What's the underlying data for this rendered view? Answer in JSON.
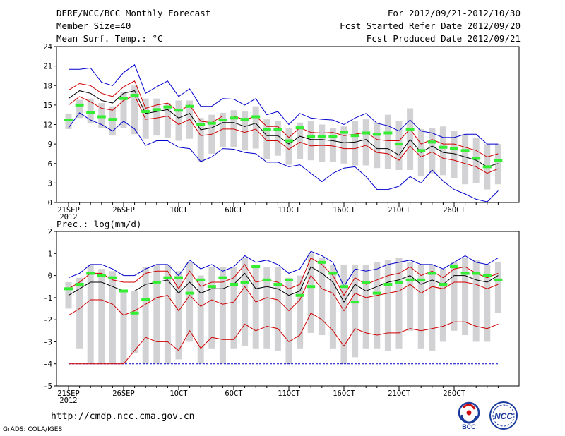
{
  "header": {
    "title": "DERF/NCC/BCC Monthly Forecast",
    "member_size": "Member Size=40",
    "variable_temp": "Mean Surf. Temp.: °C",
    "period": "For 2012/09/21-2012/10/30",
    "started": "Fcst Started Refer Date 2012/09/20",
    "produced": "Fcst Produced Date 2012/09/21"
  },
  "footer": {
    "url": "http://cmdp.ncc.cma.gov.cn",
    "grads": "GrADS: COLA/IGES",
    "logo1_text": "BCC",
    "logo2_text": "NCC"
  },
  "colors": {
    "box": "#d2d2d5",
    "blue": "#0000cc",
    "red": "#d00000",
    "black": "#000000",
    "green": "#33ee33",
    "dashed_blue": "#0000cc"
  },
  "chart_data": [
    {
      "type": "line",
      "name": "temperature",
      "title": "Mean Surf. Temp.: °C",
      "x": [
        1,
        2,
        3,
        4,
        5,
        6,
        7,
        8,
        9,
        10,
        11,
        12,
        13,
        14,
        15,
        16,
        17,
        18,
        19,
        20,
        21,
        22,
        23,
        24,
        25,
        26,
        27,
        28,
        29,
        30,
        31,
        32,
        33,
        34,
        35,
        36,
        37,
        38,
        39,
        40
      ],
      "xtick_positions": [
        1,
        6,
        11,
        16,
        21,
        26,
        31,
        36
      ],
      "xtick_labels": [
        "21SEP",
        "26SEP",
        "1OCT",
        "6OCT",
        "11OCT",
        "16OCT",
        "21OCT",
        "26OCT"
      ],
      "xtick_sublabel": "2012",
      "ylim": [
        0,
        24
      ],
      "yticks": [
        0,
        3,
        6,
        9,
        12,
        15,
        18,
        21,
        24
      ],
      "series": [
        {
          "name": "max",
          "color": "blue",
          "values": [
            20.5,
            20.5,
            20.7,
            18.5,
            18.0,
            20.0,
            21.2,
            16.8,
            17.8,
            18.7,
            16.3,
            17.5,
            14.8,
            14.8,
            16.0,
            15.9,
            15.0,
            16.0,
            13.5,
            14.0,
            12.0,
            13.7,
            13.0,
            12.8,
            12.7,
            12.0,
            13.0,
            13.7,
            12.2,
            11.8,
            11.0,
            12.7,
            11.0,
            10.7,
            10.0,
            10.0,
            10.5,
            10.5,
            9.0,
            9.0
          ]
        },
        {
          "name": "plus_sd",
          "color": "red",
          "values": [
            17.3,
            18.3,
            18.0,
            16.8,
            16.3,
            17.8,
            18.7,
            14.5,
            15.0,
            15.3,
            14.0,
            15.0,
            12.5,
            12.3,
            13.3,
            13.3,
            12.7,
            13.3,
            11.7,
            11.7,
            10.0,
            11.5,
            10.8,
            10.7,
            10.8,
            10.3,
            10.5,
            10.8,
            9.7,
            9.5,
            9.5,
            11.3,
            9.0,
            9.7,
            9.0,
            9.0,
            8.5,
            8.0,
            7.0,
            7.5
          ]
        },
        {
          "name": "mean",
          "color": "black",
          "values": [
            16.0,
            17.2,
            16.8,
            15.7,
            15.3,
            16.8,
            17.2,
            13.7,
            14.0,
            14.3,
            13.0,
            13.7,
            11.2,
            11.5,
            12.3,
            12.3,
            11.7,
            12.2,
            10.3,
            10.3,
            9.0,
            10.2,
            9.7,
            9.7,
            9.5,
            9.2,
            9.3,
            9.7,
            8.3,
            8.3,
            7.3,
            9.7,
            7.7,
            8.7,
            7.7,
            7.5,
            7.0,
            6.5,
            5.5,
            6.0
          ]
        },
        {
          "name": "minus_sd",
          "color": "red",
          "values": [
            15.0,
            16.3,
            15.5,
            14.5,
            14.2,
            15.7,
            16.5,
            12.8,
            13.0,
            13.3,
            12.0,
            12.8,
            10.3,
            10.5,
            11.3,
            11.3,
            10.8,
            11.3,
            9.5,
            9.5,
            8.2,
            9.3,
            8.7,
            8.8,
            8.7,
            8.3,
            8.3,
            8.8,
            7.7,
            7.5,
            6.5,
            8.7,
            7.0,
            7.8,
            6.8,
            6.5,
            6.0,
            5.5,
            4.5,
            5.2
          ]
        },
        {
          "name": "min",
          "color": "blue",
          "values": [
            11.5,
            13.8,
            12.7,
            12.0,
            11.0,
            12.5,
            11.3,
            8.8,
            9.5,
            9.5,
            8.5,
            8.3,
            6.3,
            7.0,
            8.3,
            8.2,
            7.7,
            7.5,
            6.2,
            6.2,
            5.5,
            5.8,
            4.5,
            3.2,
            4.5,
            5.3,
            5.5,
            4.0,
            2.0,
            2.0,
            2.5,
            4.0,
            3.0,
            5.0,
            3.3,
            2.0,
            1.3,
            0.5,
            0.1,
            1.8
          ]
        }
      ],
      "boxes": {
        "low": [
          11.3,
          13.0,
          12.2,
          11.5,
          10.3,
          11.5,
          10.5,
          9.8,
          10.3,
          10.0,
          9.5,
          9.8,
          6.2,
          7.5,
          8.5,
          8.5,
          8.0,
          8.3,
          6.7,
          7.2,
          5.8,
          6.7,
          6.5,
          6.3,
          6.2,
          6.0,
          5.7,
          5.7,
          5.3,
          5.2,
          5.0,
          5.0,
          4.0,
          4.5,
          4.2,
          3.8,
          2.8,
          3.0,
          2.0,
          2.8
        ],
        "high": [
          13.7,
          15.8,
          16.0,
          15.3,
          14.8,
          17.0,
          18.0,
          16.0,
          16.0,
          15.3,
          15.7,
          15.7,
          13.0,
          13.5,
          13.8,
          14.2,
          14.0,
          14.8,
          12.8,
          12.5,
          11.5,
          12.3,
          12.5,
          12.0,
          11.5,
          11.7,
          12.5,
          12.8,
          12.3,
          13.5,
          12.5,
          14.5,
          11.3,
          11.5,
          11.7,
          11.0,
          10.5,
          10.0,
          9.0,
          9.0
        ]
      },
      "observations": [
        12.7,
        15.0,
        13.8,
        13.2,
        12.8,
        16.0,
        16.5,
        14.0,
        14.3,
        14.7,
        14.2,
        14.8,
        12.0,
        12.2,
        12.7,
        13.0,
        12.8,
        13.2,
        11.2,
        11.2,
        9.5,
        11.5,
        10.2,
        10.2,
        10.2,
        10.8,
        10.3,
        10.7,
        10.5,
        10.7,
        9.0,
        11.3,
        8.0,
        9.3,
        8.5,
        8.3,
        8.0,
        6.8,
        5.5,
        6.5
      ]
    },
    {
      "type": "line",
      "name": "precipitation",
      "title": "Prec.: log(mm/d)",
      "x": [
        1,
        2,
        3,
        4,
        5,
        6,
        7,
        8,
        9,
        10,
        11,
        12,
        13,
        14,
        15,
        16,
        17,
        18,
        19,
        20,
        21,
        22,
        23,
        24,
        25,
        26,
        27,
        28,
        29,
        30,
        31,
        32,
        33,
        34,
        35,
        36,
        37,
        38,
        39,
        40
      ],
      "xtick_positions": [
        1,
        6,
        11,
        16,
        21,
        26,
        31,
        36
      ],
      "xtick_labels": [
        "21SEP",
        "26SEP",
        "1OCT",
        "6OCT",
        "11OCT",
        "16OCT",
        "21OCT",
        "26OCT"
      ],
      "xtick_sublabel": "2012",
      "ylim": [
        -5,
        2
      ],
      "yticks": [
        -5,
        -4,
        -3,
        -2,
        -1,
        0,
        1,
        2
      ],
      "series": [
        {
          "name": "max",
          "color": "blue",
          "values": [
            -0.1,
            0.1,
            0.5,
            0.5,
            0.3,
            0.0,
            0.0,
            0.3,
            0.5,
            0.5,
            0.0,
            0.7,
            0.3,
            0.5,
            0.2,
            0.4,
            0.9,
            0.6,
            0.7,
            0.5,
            0.1,
            0.3,
            1.1,
            0.9,
            0.6,
            -0.5,
            0.3,
            0.2,
            0.3,
            0.5,
            0.6,
            0.7,
            0.5,
            0.5,
            0.3,
            0.6,
            0.9,
            0.6,
            0.5,
            0.8
          ]
        },
        {
          "name": "plus_sd",
          "color": "red",
          "values": [
            -0.6,
            -0.3,
            0.1,
            0.1,
            -0.2,
            -0.3,
            -0.3,
            0.1,
            0.2,
            0.2,
            -0.6,
            0.2,
            -0.5,
            -0.3,
            -0.3,
            -0.1,
            0.5,
            -0.3,
            -0.2,
            -0.3,
            -0.6,
            -0.4,
            0.8,
            0.5,
            0.0,
            -0.9,
            -0.1,
            -0.4,
            -0.2,
            0.0,
            0.1,
            0.4,
            0.0,
            0.2,
            -0.1,
            0.3,
            0.4,
            0.1,
            -0.1,
            0.1
          ]
        },
        {
          "name": "mean",
          "color": "black",
          "values": [
            -0.9,
            -0.6,
            -0.3,
            -0.3,
            -0.5,
            -0.7,
            -0.7,
            -0.4,
            -0.3,
            -0.2,
            -0.8,
            -0.3,
            -0.8,
            -0.6,
            -0.6,
            -0.4,
            0.1,
            -0.6,
            -0.5,
            -0.6,
            -0.9,
            -0.7,
            0.4,
            0.1,
            -0.3,
            -1.2,
            -0.4,
            -0.7,
            -0.5,
            -0.3,
            -0.2,
            0.0,
            -0.4,
            -0.2,
            -0.4,
            0.0,
            0.0,
            -0.2,
            -0.3,
            0.0
          ]
        },
        {
          "name": "minus_sd",
          "color": "red",
          "values": [
            -1.8,
            -1.5,
            -1.1,
            -1.1,
            -1.3,
            -1.8,
            -1.6,
            -1.3,
            -1.0,
            -0.9,
            -1.6,
            -0.9,
            -1.4,
            -1.1,
            -1.3,
            -1.2,
            -0.5,
            -1.2,
            -1.0,
            -1.1,
            -1.6,
            -1.1,
            0.0,
            -0.6,
            -0.8,
            -1.6,
            -0.8,
            -1.0,
            -0.9,
            -0.8,
            -0.7,
            -0.4,
            -0.8,
            -0.5,
            -0.6,
            -0.3,
            -0.3,
            -0.4,
            -0.6,
            -0.4
          ]
        },
        {
          "name": "min",
          "color": "red",
          "values": [
            -4.0,
            -4.0,
            -4.0,
            -4.0,
            -4.0,
            -4.0,
            -3.4,
            -2.8,
            -3.0,
            -3.0,
            -3.4,
            -2.5,
            -3.3,
            -2.8,
            -2.9,
            -2.9,
            -2.2,
            -2.5,
            -2.3,
            -2.4,
            -3.0,
            -2.7,
            -1.7,
            -2.0,
            -2.5,
            -3.2,
            -2.4,
            -2.6,
            -2.7,
            -2.6,
            -2.6,
            -2.4,
            -2.5,
            -2.4,
            -2.3,
            -2.1,
            -2.1,
            -2.3,
            -2.4,
            -2.2
          ]
        }
      ],
      "baseline": {
        "value": -4.0,
        "color": "dashed_blue"
      },
      "boxes": {
        "low": [
          -1.5,
          -3.3,
          -4.0,
          -4.0,
          -4.0,
          -4.0,
          -3.5,
          -4.0,
          -4.0,
          -4.0,
          -3.8,
          -3.0,
          -4.0,
          -3.3,
          -4.0,
          -3.3,
          -3.2,
          -3.3,
          -3.3,
          -3.4,
          -4.0,
          -3.3,
          -2.6,
          -2.7,
          -3.3,
          -4.0,
          -3.7,
          -3.3,
          -3.3,
          -3.4,
          -3.3,
          -2.5,
          -3.3,
          -3.4,
          -3.0,
          -2.5,
          -2.7,
          -3.0,
          -3.0,
          -1.7
        ],
        "high": [
          -0.3,
          -0.1,
          0.5,
          0.3,
          0.2,
          -0.7,
          -0.7,
          0.4,
          0.5,
          0.5,
          0.2,
          0.6,
          0.0,
          0.4,
          0.4,
          0.4,
          0.8,
          0.5,
          0.4,
          0.4,
          -0.1,
          0.0,
          1.0,
          0.8,
          0.5,
          0.5,
          0.5,
          0.5,
          0.6,
          0.7,
          0.8,
          0.6,
          0.5,
          0.5,
          0.3,
          0.6,
          0.8,
          0.7,
          0.5,
          0.6
        ]
      },
      "observations": [
        -0.6,
        -0.4,
        0.1,
        0.0,
        -0.1,
        -0.7,
        -1.7,
        -1.1,
        -0.3,
        -0.1,
        -0.1,
        -0.8,
        -0.2,
        -0.5,
        -0.1,
        -0.4,
        -0.3,
        0.4,
        -0.2,
        -0.4,
        -0.2,
        -0.9,
        -0.5,
        0.6,
        0.1,
        -0.5,
        -1.2,
        -0.3,
        -0.8,
        -0.4,
        -0.3,
        -0.2,
        -0.2,
        0.1,
        -0.4,
        0.4,
        0.1,
        0.1,
        0.0,
        -0.2
      ]
    }
  ]
}
